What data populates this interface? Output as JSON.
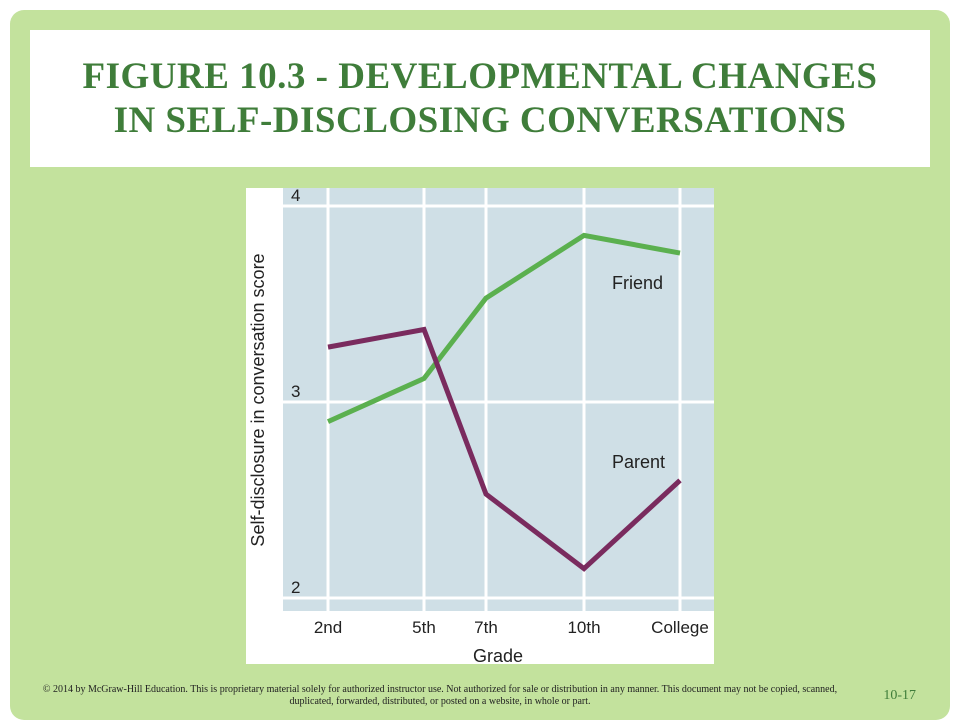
{
  "slide": {
    "title": "Figure 10.3 - Developmental changes in self-disclosing conversations",
    "copyright": "© 2014 by McGraw-Hill Education. This is proprietary material solely for authorized instructor use. Not authorized for sale or distribution in any manner. This document may not be copied, scanned, duplicated, forwarded, distributed, or posted on a website, in whole or part.",
    "page_number": "10-17"
  },
  "chart_data": {
    "type": "line",
    "title": "",
    "xlabel": "Grade",
    "ylabel": "Self-disclosure in conversation score",
    "categories": [
      "2nd",
      "5th",
      "7th",
      "10th",
      "College"
    ],
    "y_ticks": [
      "2",
      "3",
      "4"
    ],
    "ylim": [
      2,
      4
    ],
    "grid": true,
    "series": [
      {
        "name": "Friend",
        "color": "#5bb04f",
        "values": [
          2.9,
          3.12,
          3.53,
          3.85,
          3.76
        ]
      },
      {
        "name": "Parent",
        "color": "#7a2b5e",
        "values": [
          3.28,
          3.37,
          2.53,
          2.15,
          2.6
        ]
      }
    ]
  }
}
